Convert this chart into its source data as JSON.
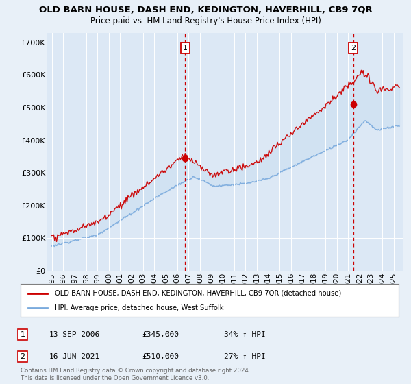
{
  "title": "OLD BARN HOUSE, DASH END, KEDINGTON, HAVERHILL, CB9 7QR",
  "subtitle": "Price paid vs. HM Land Registry's House Price Index (HPI)",
  "background_color": "#e8f0f8",
  "plot_bg_color": "#dce8f5",
  "ylabel_ticks": [
    "£0",
    "£100K",
    "£200K",
    "£300K",
    "£400K",
    "£500K",
    "£600K",
    "£700K"
  ],
  "ytick_vals": [
    0,
    100000,
    200000,
    300000,
    400000,
    500000,
    600000,
    700000
  ],
  "ylim": [
    0,
    730000
  ],
  "xlim_start": 1994.6,
  "xlim_end": 2025.8,
  "xtick_years": [
    1995,
    1996,
    1997,
    1998,
    1999,
    2000,
    2001,
    2002,
    2003,
    2004,
    2005,
    2006,
    2007,
    2008,
    2009,
    2010,
    2011,
    2012,
    2013,
    2014,
    2015,
    2016,
    2017,
    2018,
    2019,
    2020,
    2021,
    2022,
    2023,
    2024,
    2025
  ],
  "sale1_x": 2006.7,
  "sale1_y": 345000,
  "sale2_x": 2021.45,
  "sale2_y": 510000,
  "red_color": "#cc0000",
  "blue_color": "#7aaadd",
  "fill_color": "#c8ddf0",
  "legend_label_red": "OLD BARN HOUSE, DASH END, KEDINGTON, HAVERHILL, CB9 7QR (detached house)",
  "legend_label_blue": "HPI: Average price, detached house, West Suffolk",
  "table_row1": [
    "1",
    "13-SEP-2006",
    "£345,000",
    "34% ↑ HPI"
  ],
  "table_row2": [
    "2",
    "16-JUN-2021",
    "£510,000",
    "27% ↑ HPI"
  ],
  "footer": "Contains HM Land Registry data © Crown copyright and database right 2024.\nThis data is licensed under the Open Government Licence v3.0."
}
